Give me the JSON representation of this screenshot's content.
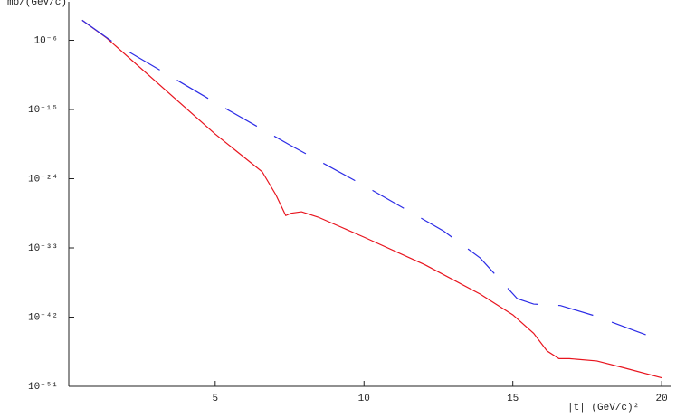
{
  "chart_data": {
    "type": "line",
    "ylabel": "mb/(GeV/c)",
    "xlabel": "|t|  (GeV/c)²",
    "log_y": true,
    "xlim": [
      0.08,
      20.3
    ],
    "ylim": [
      1e-51,
      0.1
    ],
    "xticks": [
      5,
      10,
      15,
      20
    ],
    "yticks": [
      {
        "value": 1e-06,
        "label": "10⁻⁶"
      },
      {
        "value": 1e-15,
        "label": "10⁻¹⁵"
      },
      {
        "value": 1e-24,
        "label": "10⁻²⁴"
      },
      {
        "value": 1e-33,
        "label": "10⁻³³"
      },
      {
        "value": 1e-42,
        "label": "10⁻⁴²"
      },
      {
        "value": 1e-51,
        "label": "10⁻⁵¹"
      }
    ],
    "series": [
      {
        "color": "#e8141e",
        "linestyle": "solid",
        "x": [
          0.53,
          1.35,
          5,
          6.58,
          7.04,
          7.37,
          7.55,
          7.9,
          8.46,
          10,
          12.05,
          13.9,
          15,
          15.7,
          16.15,
          16.55,
          16.9,
          17.82,
          18.74,
          20
        ],
        "values": [
          0.000398,
          2e-06,
          6.3e-19,
          7.9e-24,
          7.9e-27,
          1.6e-29,
          3.2e-29,
          5e-29,
          1e-29,
          2.5e-32,
          6.3e-36,
          1e-39,
          2e-42,
          7.9e-45,
          4e-47,
          4e-48,
          4e-48,
          2e-48,
          2.5e-49,
          1.3e-50
        ]
      },
      {
        "color": "#2c2ce6",
        "linestyle": "dashed",
        "x": [
          0.53,
          1.7,
          5,
          7.5,
          10,
          12.67,
          13.9,
          15.15,
          15.7,
          16.6,
          17.8,
          19.05,
          19.9
        ],
        "values": [
          0.000398,
          2.5e-07,
          7.9e-15,
          2.5e-20,
          1.3e-25,
          1.6e-31,
          5e-35,
          2.5e-40,
          5e-41,
          3.2e-41,
          1.3e-42,
          2e-44,
          1.3e-45
        ]
      }
    ]
  }
}
